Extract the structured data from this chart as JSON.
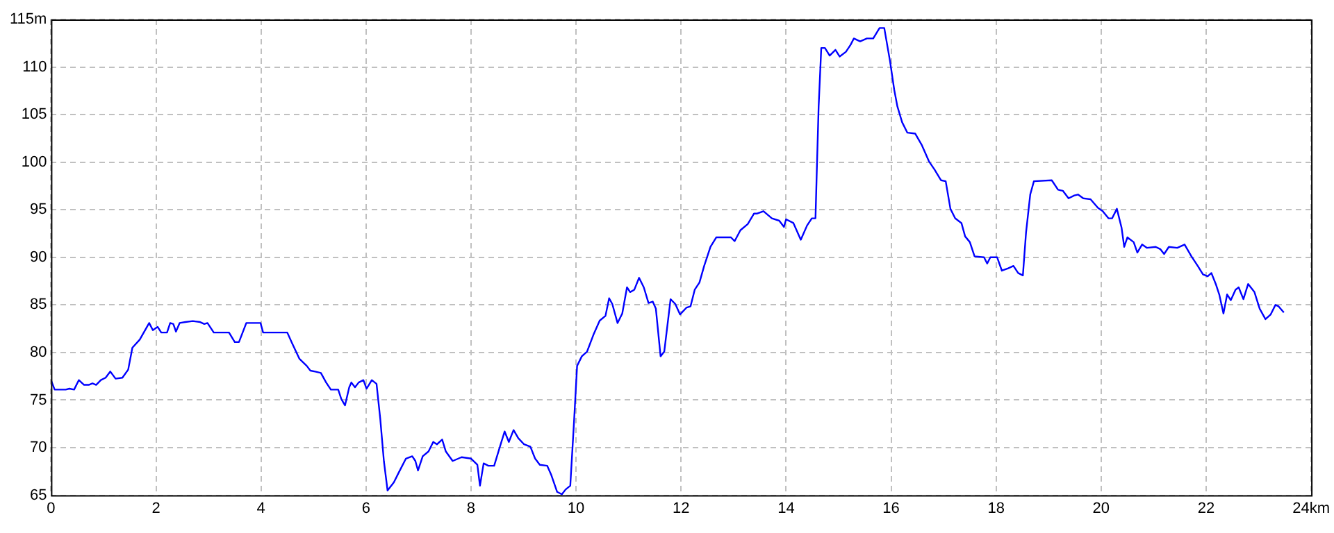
{
  "chart_data": {
    "type": "line",
    "xlim": [
      0,
      24
    ],
    "ylim": [
      65,
      115
    ],
    "xticks": [
      0,
      2,
      4,
      6,
      8,
      10,
      12,
      14,
      16,
      18,
      20,
      22,
      {
        "value": 24,
        "label": "24km"
      }
    ],
    "yticks": [
      65,
      70,
      75,
      80,
      85,
      90,
      95,
      100,
      105,
      110,
      {
        "value": 115,
        "label": "115m"
      }
    ],
    "grid": true,
    "marker": "none",
    "line_style": "solid",
    "series": [
      {
        "color": "#0000ff",
        "x": [
          0,
          0.07,
          0.28,
          0.35,
          0.44,
          0.53,
          0.63,
          0.72,
          0.79,
          0.86,
          0.95,
          1.04,
          1.13,
          1.23,
          1.36,
          1.47,
          1.55,
          1.69,
          1.87,
          1.94,
          2.03,
          2.1,
          2.21,
          2.27,
          2.33,
          2.38,
          2.45,
          2.56,
          2.7,
          2.84,
          2.92,
          2.98,
          3.1,
          3.39,
          3.5,
          3.58,
          3.72,
          3.99,
          4.04,
          4.5,
          4.59,
          4.73,
          4.87,
          4.94,
          5.03,
          5.14,
          5.24,
          5.33,
          5.47,
          5.53,
          5.6,
          5.68,
          5.72,
          5.79,
          5.86,
          5.95,
          6.01,
          6.11,
          6.2,
          6.27,
          6.34,
          6.41,
          6.53,
          6.62,
          6.76,
          6.88,
          6.94,
          6.99,
          7.08,
          7.19,
          7.28,
          7.35,
          7.45,
          7.52,
          7.65,
          7.82,
          8,
          8.12,
          8.17,
          8.24,
          8.33,
          8.44,
          8.55,
          8.64,
          8.72,
          8.81,
          8.9,
          9.01,
          9.13,
          9.22,
          9.31,
          9.45,
          9.53,
          9.64,
          9.73,
          9.8,
          9.89,
          9.96,
          10.02,
          10.11,
          10.21,
          10.33,
          10.45,
          10.56,
          10.63,
          10.69,
          10.79,
          10.88,
          10.97,
          11.03,
          11.11,
          11.2,
          11.29,
          11.38,
          11.46,
          11.52,
          11.61,
          11.68,
          11.8,
          11.89,
          11.98,
          12.1,
          12.18,
          12.26,
          12.35,
          12.44,
          12.56,
          12.67,
          12.95,
          13.02,
          13.13,
          13.27,
          13.39,
          13.45,
          13.57,
          13.73,
          13.87,
          13.96,
          14,
          14.14,
          14.28,
          14.4,
          14.49,
          14.56,
          14.58,
          14.62,
          14.67,
          14.74,
          14.83,
          14.94,
          15.02,
          15.14,
          15.23,
          15.29,
          15.41,
          15.54,
          15.66,
          15.78,
          15.87,
          15.98,
          16.06,
          16.12,
          16.21,
          16.31,
          16.46,
          16.58,
          16.64,
          16.72,
          16.83,
          16.95,
          17.04,
          17.13,
          17.22,
          17.34,
          17.41,
          17.5,
          17.59,
          17.77,
          17.83,
          17.89,
          18.02,
          18.11,
          18.23,
          18.33,
          18.42,
          18.51,
          18.57,
          18.65,
          18.72,
          19.06,
          19.18,
          19.27,
          19.38,
          19.49,
          19.56,
          19.66,
          19.8,
          19.94,
          20.03,
          20.14,
          20.21,
          20.3,
          20.39,
          20.44,
          20.5,
          20.62,
          20.69,
          20.78,
          20.87,
          21.04,
          21.13,
          21.2,
          21.29,
          21.45,
          21.59,
          21.72,
          21.84,
          21.94,
          22.03,
          22.1,
          22.19,
          22.25,
          22.33,
          22.4,
          22.47,
          22.56,
          22.62,
          22.71,
          22.8,
          22.92,
          23.02,
          23.13,
          23.23,
          23.32,
          23.38,
          23.48
        ],
        "values": [
          77.1,
          76.1,
          76.1,
          76.2,
          76.1,
          77.1,
          76.6,
          76.6,
          76.75,
          76.6,
          77.1,
          77.35,
          78,
          77.25,
          77.35,
          78.2,
          80.5,
          81.35,
          83.1,
          82.35,
          82.7,
          82.1,
          82.1,
          83.1,
          83,
          82.2,
          83.1,
          83.2,
          83.3,
          83.2,
          83,
          83.1,
          82.1,
          82.1,
          81.1,
          81.1,
          83.1,
          83.1,
          82.1,
          82.1,
          81,
          79.35,
          78.6,
          78.1,
          78,
          77.85,
          76.85,
          76.1,
          76.1,
          75.1,
          74.45,
          76.35,
          76.85,
          76.35,
          76.85,
          77.1,
          76.2,
          77.1,
          76.7,
          73.1,
          68.6,
          65.5,
          66.35,
          67.35,
          68.85,
          69.1,
          68.6,
          67.6,
          69.1,
          69.6,
          70.6,
          70.35,
          70.85,
          69.6,
          68.6,
          69,
          68.85,
          68.2,
          66,
          68.35,
          68.1,
          68.1,
          70.1,
          71.7,
          70.6,
          71.85,
          71,
          70.35,
          70.1,
          68.85,
          68.2,
          68.1,
          67.1,
          65.35,
          65.1,
          65.6,
          66,
          72.6,
          78.6,
          79.6,
          80.1,
          81.85,
          83.35,
          83.85,
          85.7,
          85.1,
          83.1,
          84.1,
          86.85,
          86.35,
          86.6,
          87.85,
          86.85,
          85.2,
          85.35,
          84.6,
          79.6,
          80.1,
          85.6,
          85.1,
          84,
          84.7,
          84.85,
          86.6,
          87.35,
          89.1,
          91.1,
          92.1,
          92.1,
          91.7,
          92.85,
          93.5,
          94.6,
          94.6,
          94.85,
          94.1,
          93.85,
          93.2,
          94,
          93.6,
          91.85,
          93.35,
          94.1,
          94.1,
          98.1,
          105.85,
          112,
          112,
          111.2,
          111.8,
          111.1,
          111.6,
          112.35,
          113,
          112.7,
          113,
          113,
          114.1,
          114.1,
          110.6,
          107.6,
          105.85,
          104.2,
          103.1,
          103,
          101.85,
          101.1,
          100.1,
          99.2,
          98.1,
          98,
          95.1,
          94.1,
          93.6,
          92.2,
          91.6,
          90.1,
          90,
          89.35,
          90,
          90,
          88.6,
          88.85,
          89.1,
          88.35,
          88.1,
          92.6,
          96.6,
          98,
          98.1,
          97.1,
          97,
          96.2,
          96.5,
          96.6,
          96.2,
          96.1,
          95.2,
          94.85,
          94.1,
          94.1,
          95.1,
          93.1,
          91.1,
          92.1,
          91.6,
          90.5,
          91.35,
          91,
          91.1,
          90.85,
          90.35,
          91.1,
          91,
          91.35,
          90.1,
          89.1,
          88.2,
          88,
          88.35,
          87.1,
          86.1,
          84.1,
          86.1,
          85.5,
          86.6,
          86.85,
          85.6,
          87.2,
          86.35,
          84.6,
          83.5,
          84,
          85,
          84.85,
          84.2
        ]
      }
    ]
  }
}
